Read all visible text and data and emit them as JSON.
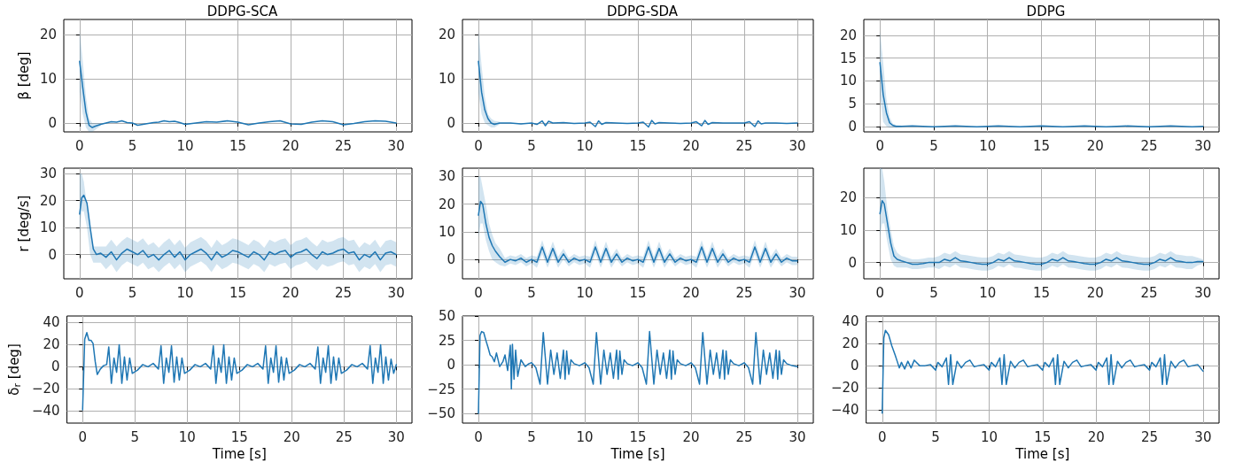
{
  "chart_data": [
    {
      "type": "line",
      "title": "DDPG-SCA",
      "ylabel": "β [deg]",
      "xlim": [
        -1.5,
        31.5
      ],
      "xticks": [
        0,
        5,
        10,
        15,
        20,
        25,
        30
      ],
      "ylim": [
        -2,
        23.5
      ],
      "yticks": [
        0,
        10,
        20
      ],
      "grid": true,
      "x": [
        0,
        0.3,
        0.6,
        0.9,
        1.2,
        1.5,
        2,
        2.5,
        3,
        3.5,
        4,
        4.5,
        5,
        5.5,
        6,
        6.5,
        7,
        7.5,
        8,
        8.5,
        9,
        9.5,
        10,
        11,
        12,
        13,
        14,
        15,
        16,
        17,
        18,
        19,
        20,
        21,
        22,
        23,
        24,
        25,
        26,
        27,
        28,
        29,
        30
      ],
      "series": [
        {
          "color": "#1f77b4",
          "values": [
            14,
            8,
            2.5,
            -0.5,
            -1,
            -0.7,
            -0.3,
            0,
            0.3,
            0.2,
            0.5,
            0.1,
            0,
            -0.5,
            -0.3,
            -0.1,
            0.1,
            0.2,
            0.5,
            0.3,
            0.4,
            0.1,
            -0.3,
            0,
            0.3,
            0.2,
            0.5,
            0.2,
            -0.4,
            0,
            0.3,
            0.5,
            -0.2,
            -0.3,
            0.2,
            0.5,
            0.3,
            -0.4,
            -0.1,
            0.3,
            0.5,
            0.4,
            0
          ],
          "upper": [
            21,
            14,
            6,
            1,
            0,
            0,
            0,
            null,
            null,
            null,
            null,
            null,
            null,
            null,
            null,
            null,
            null,
            null,
            null,
            null,
            null,
            null,
            null,
            null,
            null,
            null,
            null,
            null,
            null,
            null,
            null,
            null,
            null,
            null,
            null,
            null,
            null,
            null,
            null,
            null,
            null,
            null,
            null
          ],
          "lower": [
            7,
            2,
            -1,
            -2,
            -2,
            -1.5,
            -0.6,
            null,
            null,
            null,
            null,
            null,
            null,
            null,
            null,
            null,
            null,
            null,
            null,
            null,
            null,
            null,
            null,
            null,
            null,
            null,
            null,
            null,
            null,
            null,
            null,
            null,
            null,
            null,
            null,
            null,
            null,
            null,
            null,
            null,
            null,
            null,
            null
          ]
        }
      ]
    },
    {
      "type": "line",
      "title": "DDPG-SDA",
      "xlim": [
        -1.5,
        31.5
      ],
      "xticks": [
        0,
        5,
        10,
        15,
        20,
        25,
        30
      ],
      "ylim": [
        -2,
        23.5
      ],
      "yticks": [
        0,
        10,
        20
      ],
      "grid": true,
      "x": [
        0,
        0.3,
        0.6,
        0.9,
        1.2,
        1.5,
        2,
        3,
        4,
        5,
        5.5,
        6,
        6.3,
        6.6,
        7,
        8,
        9,
        10,
        10.5,
        11,
        11.3,
        11.6,
        12,
        13,
        14,
        15,
        15.5,
        16,
        16.3,
        16.6,
        17,
        18,
        19,
        20,
        20.5,
        21,
        21.3,
        21.6,
        22,
        23,
        24,
        25,
        25.5,
        26,
        26.3,
        26.6,
        27,
        28,
        29,
        30
      ],
      "series": [
        {
          "color": "#1f77b4",
          "values": [
            14,
            7,
            3,
            1,
            0,
            -0.3,
            0,
            0,
            -0.2,
            0,
            -0.3,
            0.5,
            -0.6,
            0.4,
            0,
            0.1,
            -0.1,
            0,
            0.2,
            -0.8,
            0.5,
            -0.3,
            0.1,
            0,
            -0.1,
            0,
            0.2,
            -0.9,
            0.6,
            -0.2,
            0.1,
            0,
            -0.1,
            0,
            0.3,
            -0.6,
            0.6,
            -0.3,
            0.1,
            0,
            0,
            0,
            0.3,
            -0.8,
            0.5,
            -0.2,
            0,
            0,
            -0.1,
            0
          ],
          "upper": [
            21,
            13,
            6,
            2,
            1,
            0.5,
            0.3,
            null,
            null,
            null,
            null,
            null,
            null,
            null,
            null,
            null,
            null,
            null,
            null,
            null,
            null,
            null,
            null,
            null,
            null,
            null,
            null,
            null,
            null,
            null,
            null,
            null,
            null,
            null,
            null,
            null,
            null,
            null,
            null,
            null,
            null,
            null,
            null,
            null,
            null,
            null,
            null,
            null,
            null,
            null
          ],
          "lower": [
            7,
            2,
            0,
            -0.5,
            -1,
            -1,
            -0.3,
            null,
            null,
            null,
            null,
            null,
            null,
            null,
            null,
            null,
            null,
            null,
            null,
            null,
            null,
            null,
            null,
            null,
            null,
            null,
            null,
            null,
            null,
            null,
            null,
            null,
            null,
            null,
            null,
            null,
            null,
            null,
            null,
            null,
            null,
            null,
            null,
            null,
            null,
            null,
            null,
            null,
            null,
            null
          ]
        }
      ]
    },
    {
      "type": "line",
      "title": "DDPG",
      "xlim": [
        -1.5,
        31.5
      ],
      "xticks": [
        0,
        5,
        10,
        15,
        20,
        25,
        30
      ],
      "ylim": [
        -1.2,
        23.5
      ],
      "yticks": [
        0,
        5,
        10,
        15,
        20
      ],
      "grid": true,
      "x": [
        0,
        0.3,
        0.6,
        0.9,
        1.2,
        1.5,
        2,
        3,
        4,
        5,
        6,
        7,
        8,
        9,
        10,
        11,
        12,
        13,
        14,
        15,
        16,
        17,
        18,
        19,
        20,
        21,
        22,
        23,
        24,
        25,
        26,
        27,
        28,
        29,
        30
      ],
      "series": [
        {
          "color": "#1f77b4",
          "values": [
            14,
            7,
            3,
            0.8,
            0.2,
            0,
            0,
            0.1,
            0,
            -0.1,
            0,
            0.1,
            0,
            -0.1,
            0,
            0.1,
            0,
            -0.1,
            0,
            0.1,
            0,
            -0.1,
            0,
            0.1,
            0,
            -0.1,
            0,
            0.1,
            0,
            -0.1,
            0,
            0.1,
            0,
            -0.1,
            0
          ],
          "upper": [
            21,
            14,
            6,
            2,
            0.6,
            0.3,
            0.2,
            null,
            null,
            null,
            null,
            null,
            null,
            null,
            null,
            null,
            null,
            null,
            null,
            null,
            null,
            null,
            null,
            null,
            null,
            null,
            null,
            null,
            null,
            null,
            null,
            null,
            null,
            null,
            null
          ],
          "lower": [
            7,
            1,
            0,
            -0.3,
            -0.3,
            -0.3,
            -0.2,
            null,
            null,
            null,
            null,
            null,
            null,
            null,
            null,
            null,
            null,
            null,
            null,
            null,
            null,
            null,
            null,
            null,
            null,
            null,
            null,
            null,
            null,
            null,
            null,
            null,
            null,
            null,
            null
          ]
        }
      ]
    },
    {
      "type": "line",
      "ylabel": "r [deg/s]",
      "xlim": [
        -1.5,
        31.5
      ],
      "xticks": [
        0,
        5,
        10,
        15,
        20,
        25,
        30
      ],
      "ylim": [
        -9,
        32
      ],
      "yticks": [
        0,
        10,
        20,
        30
      ],
      "grid": true,
      "x": [
        0,
        0.2,
        0.4,
        0.7,
        1,
        1.3,
        1.6,
        2,
        2.5,
        3,
        3.5,
        4,
        4.5,
        5,
        5.5,
        6,
        6.5,
        7,
        7.5,
        8,
        8.5,
        9,
        9.5,
        10,
        10.5,
        11,
        11.5,
        12,
        12.5,
        13,
        13.5,
        14,
        14.5,
        15,
        15.5,
        16,
        16.5,
        17,
        17.5,
        18,
        18.5,
        19,
        19.5,
        20,
        20.5,
        21,
        21.5,
        22,
        22.5,
        23,
        23.5,
        24,
        24.5,
        25,
        25.5,
        26,
        26.5,
        27,
        27.5,
        28,
        28.5,
        29,
        29.5,
        30
      ],
      "series": [
        {
          "color": "#1f77b4",
          "values": [
            15,
            21,
            22,
            19,
            10,
            2,
            0,
            0.5,
            -1,
            1,
            -2,
            0.5,
            2,
            1,
            0,
            1.5,
            -1,
            0,
            -2,
            0,
            1.5,
            -1,
            1,
            -2,
            0,
            1,
            2,
            0.5,
            -2,
            1,
            -1,
            0,
            1.5,
            1,
            0,
            -1,
            1,
            0,
            -2,
            1,
            0,
            1,
            1.5,
            -1,
            0.5,
            1,
            2,
            0,
            -1.5,
            1,
            0,
            0.5,
            1.5,
            2,
            0.5,
            1,
            -2,
            0,
            -1,
            1,
            -2,
            0.5,
            1,
            0
          ],
          "upper": [
            30,
            30,
            27,
            18,
            8,
            3,
            3,
            3,
            3,
            5.5,
            3,
            5,
            6.5,
            5.5,
            4.5,
            6,
            3.5,
            4.5,
            2.5,
            4.5,
            6,
            3.5,
            5.5,
            2.5,
            4.5,
            5.5,
            6.5,
            5,
            2.5,
            5.5,
            3.5,
            4.5,
            6,
            5.5,
            4.5,
            3.5,
            5.5,
            4.5,
            2.5,
            5.5,
            4.5,
            5.5,
            6,
            3.5,
            5,
            5.5,
            6.5,
            4.5,
            3,
            5.5,
            4.5,
            5,
            6,
            6.5,
            5,
            5.5,
            2.5,
            4.5,
            3.5,
            5.5,
            2.5,
            5,
            5.5,
            4.5
          ],
          "lower": [
            8,
            16,
            16,
            10,
            0,
            -3,
            -3,
            -3,
            -5.5,
            -3.5,
            -6.5,
            -4,
            -2.5,
            -3.5,
            -4.5,
            -3,
            -5.5,
            -4.5,
            -6.5,
            -4.5,
            -3,
            -5.5,
            -3.5,
            -6.5,
            -4.5,
            -3.5,
            -2.5,
            -4,
            -6.5,
            -3.5,
            -5.5,
            -4.5,
            -3,
            -3.5,
            -4.5,
            -5.5,
            -3.5,
            -4.5,
            -6.5,
            -3.5,
            -4.5,
            -3.5,
            -3,
            -5.5,
            -4,
            -3.5,
            -2.5,
            -4.5,
            -6,
            -3.5,
            -4.5,
            -4,
            -3,
            -2.5,
            -4,
            -3.5,
            -6.5,
            -4.5,
            -5.5,
            -3.5,
            -6.5,
            -4,
            -3.5,
            -4.5
          ]
        }
      ]
    },
    {
      "type": "line",
      "xlim": [
        -1.5,
        31.5
      ],
      "xticks": [
        0,
        5,
        10,
        15,
        20,
        25,
        30
      ],
      "ylim": [
        -7,
        33
      ],
      "yticks": [
        0,
        10,
        20,
        30
      ],
      "grid": true,
      "x": [
        0,
        0.2,
        0.4,
        0.7,
        1,
        1.3,
        1.6,
        2,
        2.5,
        3,
        3.5,
        4,
        4.5,
        5,
        5.5,
        6,
        6.5,
        7,
        7.5,
        8,
        8.5,
        9,
        9.5,
        10,
        10.5,
        11,
        11.5,
        12,
        12.5,
        13,
        13.5,
        14,
        14.5,
        15,
        15.5,
        16,
        16.5,
        17,
        17.5,
        18,
        18.5,
        19,
        19.5,
        20,
        20.5,
        21,
        21.5,
        22,
        22.5,
        23,
        23.5,
        24,
        24.5,
        25,
        25.5,
        26,
        26.5,
        27,
        27.5,
        28,
        28.5,
        29,
        29.5,
        30
      ],
      "series": [
        {
          "color": "#1f77b4",
          "values": [
            16,
            21,
            20,
            13,
            8,
            5,
            3,
            1,
            -1,
            0,
            -0.5,
            0.5,
            -1,
            0,
            -1,
            4.5,
            -1,
            4,
            -1,
            2,
            -1,
            0.5,
            -0.5,
            0,
            -1,
            4.5,
            -1,
            4,
            -1,
            2,
            -1,
            0.5,
            -0.5,
            0,
            -1,
            4.5,
            -1,
            4,
            -1,
            2,
            -1,
            0.5,
            -0.5,
            0,
            -1,
            4.5,
            -1,
            4,
            -1,
            2,
            -1,
            0.5,
            -0.5,
            0,
            -1,
            4.5,
            -1,
            4,
            -1,
            2,
            -1,
            0.5,
            -0.5,
            -0.5
          ],
          "upper": [
            30,
            30,
            26,
            20,
            13,
            9,
            6,
            4,
            0.5,
            1.5,
            1,
            2,
            0.5,
            1.5,
            1,
            7,
            1,
            6.5,
            1,
            4,
            0.5,
            2,
            1,
            1.5,
            1,
            7,
            1,
            6.5,
            1,
            4,
            0.5,
            2,
            1,
            1.5,
            1,
            7,
            1,
            6.5,
            1,
            4,
            0.5,
            2,
            1,
            1.5,
            1,
            7,
            1,
            6.5,
            1,
            4,
            0.5,
            2,
            1,
            1.5,
            1,
            7,
            1,
            6.5,
            1,
            4,
            0.5,
            2,
            1,
            1
          ],
          "lower": [
            8,
            13,
            13,
            7,
            3,
            0,
            -1,
            -2,
            -2.5,
            -1.5,
            -2,
            -1,
            -2.5,
            -1.5,
            -3,
            2,
            -3,
            1.5,
            -3,
            0,
            -2.5,
            -1,
            -2,
            -1.5,
            -3,
            2,
            -3,
            1.5,
            -3,
            0,
            -2.5,
            -1,
            -2,
            -1.5,
            -3,
            2,
            -3,
            1.5,
            -3,
            0,
            -2.5,
            -1,
            -2,
            -1.5,
            -3,
            2,
            -3,
            1.5,
            -3,
            0,
            -2.5,
            -1,
            -2,
            -1.5,
            -3,
            2,
            -3,
            1.5,
            -3,
            0,
            -2.5,
            -1,
            -2,
            -2
          ]
        }
      ]
    },
    {
      "type": "line",
      "xlim": [
        -1.5,
        31.5
      ],
      "xticks": [
        0,
        5,
        10,
        15,
        20,
        25,
        30
      ],
      "ylim": [
        -5,
        29
      ],
      "yticks": [
        0,
        10,
        20
      ],
      "grid": true,
      "x": [
        0,
        0.2,
        0.4,
        0.7,
        1,
        1.3,
        1.6,
        2,
        2.5,
        3,
        3.5,
        4,
        4.5,
        5,
        5.5,
        6,
        6.5,
        7,
        7.5,
        8,
        8.5,
        9,
        9.5,
        10,
        10.5,
        11,
        11.5,
        12,
        12.5,
        13,
        13.5,
        14,
        14.5,
        15,
        15.5,
        16,
        16.5,
        17,
        17.5,
        18,
        18.5,
        19,
        19.5,
        20,
        20.5,
        21,
        21.5,
        22,
        22.5,
        23,
        23.5,
        24,
        24.5,
        25,
        25.5,
        26,
        26.5,
        27,
        27.5,
        28,
        28.5,
        29,
        29.5,
        30
      ],
      "series": [
        {
          "color": "#1f77b4",
          "values": [
            15,
            19,
            18,
            12,
            6,
            2,
            1,
            0.5,
            0,
            -0.5,
            -0.5,
            -0.3,
            0,
            0,
            0,
            1,
            0.5,
            1.5,
            0.5,
            0.3,
            0,
            -0.3,
            -0.5,
            -0.5,
            0,
            1,
            0.5,
            1.5,
            0.5,
            0.3,
            0,
            -0.3,
            -0.5,
            -0.5,
            0,
            1,
            0.5,
            1.5,
            0.5,
            0.3,
            0,
            -0.3,
            -0.5,
            -0.5,
            0,
            1,
            0.5,
            1.5,
            0.5,
            0.3,
            0,
            -0.3,
            -0.5,
            -0.5,
            0,
            1,
            0.5,
            1.5,
            0.5,
            0.3,
            0,
            0,
            0.3,
            0.3
          ],
          "upper": [
            29,
            29,
            25,
            16,
            10,
            5,
            3,
            2,
            1.5,
            1,
            1,
            1.2,
            1.5,
            1.5,
            2,
            3,
            2.5,
            3.5,
            2.5,
            2.3,
            2,
            1.7,
            1.5,
            1.5,
            2,
            3,
            2.5,
            3.5,
            2.5,
            2.3,
            2,
            1.7,
            1.5,
            1.5,
            2,
            3,
            2.5,
            3.5,
            2.5,
            2.3,
            2,
            1.7,
            1.5,
            1.5,
            2,
            3,
            2.5,
            3.5,
            2.5,
            2.3,
            2,
            1.7,
            1.5,
            1.5,
            2,
            3,
            2.5,
            3.5,
            2.5,
            2.3,
            2,
            2,
            1.5,
            1
          ],
          "lower": [
            8,
            12,
            12,
            6,
            1,
            -1,
            -1.5,
            -1.5,
            -1.5,
            -2,
            -2,
            -1.8,
            -1.5,
            -1.5,
            -2,
            -1,
            -1.5,
            -0.5,
            -1.5,
            -1.7,
            -2,
            -2.3,
            -2.5,
            -2.5,
            -2,
            -1,
            -1.5,
            -0.5,
            -1.5,
            -1.7,
            -2,
            -2.3,
            -2.5,
            -2.5,
            -2,
            -1,
            -1.5,
            -0.5,
            -1.5,
            -1.7,
            -2,
            -2.3,
            -2.5,
            -2.5,
            -2,
            -1,
            -1.5,
            -0.5,
            -1.5,
            -1.7,
            -2,
            -2.3,
            -2.5,
            -2.5,
            -2,
            -1,
            -1.5,
            -0.5,
            -1.5,
            -1.7,
            -2,
            -2,
            -0.9,
            -0.4
          ]
        }
      ]
    },
    {
      "type": "line",
      "ylabel": "δ$_{r}$ [deg]",
      "xlabel": "Time [s]",
      "xlim": [
        -1.5,
        31.5
      ],
      "xticks": [
        0,
        5,
        10,
        15,
        20,
        25,
        30
      ],
      "ylim": [
        -51,
        46
      ],
      "yticks": [
        -40,
        -20,
        0,
        20,
        40
      ],
      "grid": true,
      "x": [
        0,
        0.2,
        0.4,
        0.6,
        0.8,
        1,
        1.2,
        1.4,
        1.7,
        2,
        2.3,
        2.5,
        2.75,
        3,
        3.25,
        3.5,
        3.75,
        4,
        4.25,
        4.5,
        4.75,
        5.25,
        5.75,
        6.25,
        6.75,
        7.25,
        7.5,
        7.75,
        8,
        8.25,
        8.5,
        8.75,
        9,
        9.25,
        9.5,
        9.75,
        10.25,
        10.75,
        11.25,
        11.75,
        12.25,
        12.5,
        12.75,
        13,
        13.25,
        13.5,
        13.75,
        14,
        14.25,
        14.5,
        14.75,
        15.25,
        15.75,
        16.25,
        16.75,
        17.25,
        17.5,
        17.75,
        18,
        18.25,
        18.5,
        18.75,
        19,
        19.25,
        19.5,
        19.75,
        20.25,
        20.75,
        21.25,
        21.75,
        22.25,
        22.5,
        22.75,
        23,
        23.25,
        23.5,
        23.75,
        24,
        24.25,
        24.5,
        24.75,
        25.25,
        25.75,
        26.25,
        26.75,
        27.25,
        27.5,
        27.75,
        28,
        28.25,
        28.5,
        28.75,
        29,
        29.25,
        29.5,
        29.75,
        30
      ],
      "series": [
        {
          "color": "#1f77b4",
          "values": [
            -39,
            25,
            31,
            24,
            24,
            21,
            5,
            -7,
            -2,
            1,
            2,
            18,
            -15,
            8,
            -5,
            20,
            -15,
            9,
            -12,
            8,
            -6,
            -3,
            2,
            0,
            3,
            -2,
            19,
            -15,
            8,
            -5,
            19,
            -14,
            9,
            -12,
            8,
            -6,
            -3,
            2,
            0,
            3,
            -2,
            19,
            -15,
            8,
            -5,
            20,
            -15,
            9,
            -12,
            8,
            -6,
            -3,
            2,
            0,
            3,
            -2,
            19,
            -15,
            8,
            -5,
            19,
            -14,
            9,
            -12,
            8,
            -6,
            -3,
            2,
            0,
            3,
            -2,
            18,
            -15,
            8,
            -5,
            19,
            -15,
            9,
            -12,
            8,
            -6,
            -3,
            2,
            0,
            3,
            -2,
            19,
            -15,
            8,
            -5,
            20,
            -15,
            9,
            -12,
            7,
            -6,
            2
          ]
        }
      ]
    },
    {
      "type": "line",
      "xlabel": "Time [s]",
      "xlim": [
        -1.5,
        31.5
      ],
      "xticks": [
        0,
        5,
        10,
        15,
        20,
        25,
        30
      ],
      "ylim": [
        -60,
        50
      ],
      "yticks": [
        -50,
        -25,
        0,
        25,
        50
      ],
      "grid": true,
      "x": [
        0,
        0.15,
        0.3,
        0.5,
        0.7,
        0.9,
        1.1,
        1.3,
        1.5,
        1.7,
        2,
        2.3,
        2.5,
        2.75,
        3,
        3.1,
        3.2,
        3.35,
        3.5,
        3.7,
        4,
        4.4,
        4.75,
        5,
        5.4,
        5.8,
        6.1,
        6.5,
        6.8,
        7.1,
        7.4,
        7.7,
        8,
        8.15,
        8.3,
        8.5,
        8.7,
        9,
        9.5,
        10,
        10.4,
        10.8,
        11.1,
        11.5,
        11.8,
        12.1,
        12.4,
        12.7,
        13,
        13.15,
        13.3,
        13.5,
        13.7,
        14,
        14.5,
        15,
        15.4,
        15.8,
        16.1,
        16.5,
        16.8,
        17.1,
        17.4,
        17.7,
        18,
        18.15,
        18.3,
        18.5,
        18.7,
        19,
        19.5,
        20,
        20.4,
        20.8,
        21.1,
        21.5,
        21.8,
        22.1,
        22.4,
        22.7,
        23,
        23.15,
        23.3,
        23.5,
        23.7,
        24,
        24.5,
        25,
        25.4,
        25.8,
        26.1,
        26.5,
        26.8,
        27.1,
        27.4,
        27.7,
        28,
        28.15,
        28.3,
        28.5,
        28.7,
        29,
        29.5,
        30
      ],
      "series": [
        {
          "color": "#1f77b4",
          "values": [
            -50,
            30,
            34,
            33,
            25,
            18,
            10,
            8,
            3,
            12,
            -2,
            3,
            10,
            -6,
            20,
            -25,
            21,
            -15,
            15,
            -12,
            5,
            -2,
            1,
            2,
            -3,
            -20,
            33,
            -20,
            15,
            -10,
            12,
            -14,
            15,
            -15,
            14,
            -10,
            5,
            1,
            -1,
            2,
            -3,
            -20,
            33,
            -20,
            15,
            -10,
            12,
            -14,
            15,
            -15,
            14,
            -10,
            5,
            1,
            -1,
            2,
            -3,
            -20,
            34,
            -20,
            15,
            -10,
            12,
            -14,
            15,
            -15,
            14,
            -10,
            5,
            1,
            -1,
            2,
            -3,
            -20,
            33,
            -20,
            15,
            -10,
            12,
            -14,
            15,
            -15,
            14,
            -10,
            5,
            1,
            -1,
            2,
            -3,
            -20,
            33,
            -20,
            15,
            -10,
            12,
            -14,
            15,
            -15,
            14,
            -10,
            5,
            1,
            -1,
            -2
          ]
        }
      ]
    },
    {
      "type": "line",
      "xlabel": "Time [s]",
      "xlim": [
        -1.5,
        31.5
      ],
      "xticks": [
        0,
        5,
        10,
        15,
        20,
        25,
        30
      ],
      "ylim": [
        -52,
        45
      ],
      "yticks": [
        -40,
        -20,
        0,
        20,
        40
      ],
      "grid": true,
      "x": [
        0,
        0.15,
        0.3,
        0.6,
        0.9,
        1.2,
        1.4,
        1.6,
        1.8,
        2.1,
        2.4,
        2.7,
        3,
        3.5,
        4,
        4.5,
        5,
        5.2,
        5.6,
        6,
        6.2,
        6.4,
        6.6,
        7,
        7.4,
        7.8,
        8.2,
        8.6,
        9,
        9.5,
        10,
        10.2,
        10.6,
        11,
        11.2,
        11.4,
        11.6,
        12,
        12.4,
        12.8,
        13.2,
        13.6,
        14,
        14.5,
        15,
        15.2,
        15.6,
        16,
        16.2,
        16.4,
        16.6,
        17,
        17.4,
        17.8,
        18.2,
        18.6,
        19,
        19.5,
        20,
        20.2,
        20.6,
        21,
        21.2,
        21.4,
        21.6,
        22,
        22.4,
        22.8,
        23.2,
        23.6,
        24,
        24.5,
        25,
        25.2,
        25.6,
        26,
        26.2,
        26.4,
        26.6,
        27,
        27.4,
        27.8,
        28.2,
        28.6,
        29,
        29.5,
        30
      ],
      "series": [
        {
          "color": "#1f77b4",
          "values": [
            -43,
            25,
            32,
            28,
            18,
            10,
            4,
            -2,
            3,
            -3,
            4,
            -2,
            5,
            0,
            0,
            1,
            -4,
            3,
            -1,
            7,
            -17,
            10,
            -17,
            4,
            -2,
            3,
            5,
            -1,
            0,
            1,
            -4,
            3,
            -1,
            7,
            -17,
            10,
            -17,
            4,
            -2,
            3,
            5,
            -1,
            0,
            1,
            -4,
            3,
            -1,
            7,
            -17,
            10,
            -17,
            4,
            -2,
            3,
            5,
            -1,
            0,
            1,
            -4,
            3,
            -1,
            7,
            -17,
            10,
            -17,
            4,
            -2,
            3,
            5,
            -1,
            0,
            1,
            -4,
            3,
            -1,
            7,
            -17,
            10,
            -17,
            4,
            -2,
            3,
            5,
            -1,
            0,
            1,
            -5
          ]
        }
      ]
    }
  ]
}
